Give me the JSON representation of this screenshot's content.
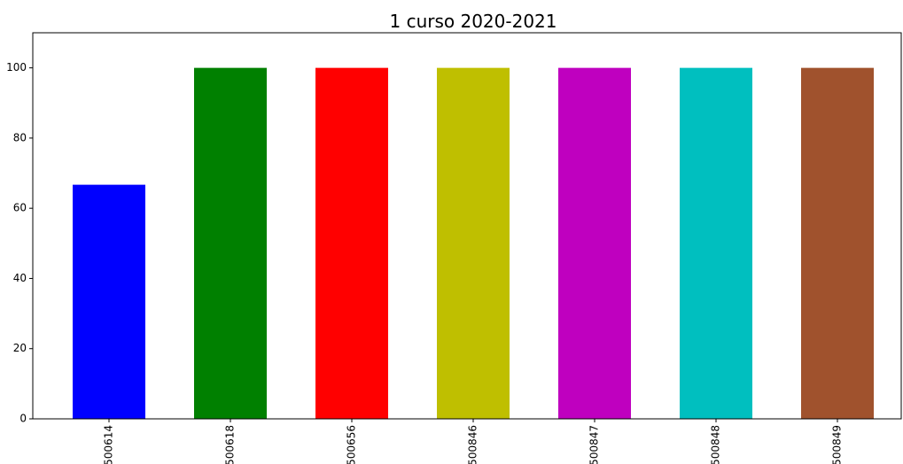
{
  "chart_data": {
    "type": "bar",
    "title": "1 curso 2020-2021",
    "categories": [
      "500614",
      "500618",
      "500656",
      "500846",
      "500847",
      "500848",
      "500849"
    ],
    "values": [
      66.7,
      100,
      100,
      100,
      100,
      100,
      100
    ],
    "colors": [
      "#0000ff",
      "#008000",
      "#ff0000",
      "#bfbf00",
      "#bf00bf",
      "#00bfbf",
      "#a0522d"
    ],
    "ylim": [
      0,
      110
    ],
    "yticks": [
      0,
      20,
      40,
      60,
      80,
      100
    ],
    "grid": false
  }
}
